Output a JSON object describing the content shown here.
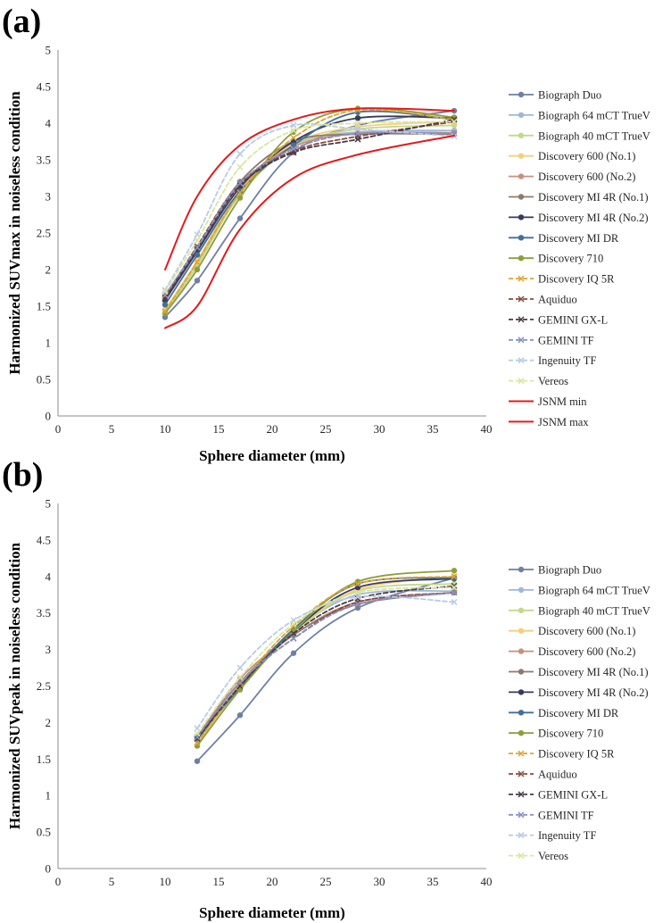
{
  "chart_data": [
    {
      "panel_label": "(a)",
      "type": "line",
      "xlabel": "Sphere diameter (mm)",
      "ylabel": "Harmonized SUVmax in noiseless condition",
      "xlim": [
        0,
        40
      ],
      "ylim": [
        0,
        5
      ],
      "xticks": [
        "0",
        "5",
        "10",
        "15",
        "20",
        "25",
        "30",
        "35",
        "40"
      ],
      "yticks": [
        "0",
        "0.5",
        "1",
        "1.5",
        "2",
        "2.5",
        "3",
        "3.5",
        "4",
        "4.5",
        "5"
      ],
      "grid": false,
      "legend_position": "right",
      "x": [
        10,
        13,
        17,
        22,
        28,
        37
      ],
      "series": [
        {
          "name": "Biograph Duo",
          "color": "#6e7fa6",
          "dash": false,
          "marker": "circle",
          "values": [
            1.35,
            1.85,
            2.7,
            3.6,
            3.97,
            4.17
          ]
        },
        {
          "name": "Biograph 64 mCT TrueV",
          "color": "#9db8d9",
          "dash": false,
          "marker": "circle",
          "values": [
            1.45,
            2.1,
            3.05,
            3.7,
            3.88,
            3.9
          ]
        },
        {
          "name": "Biograph 40 mCT TrueV",
          "color": "#c4d88a",
          "dash": false,
          "marker": "circle",
          "values": [
            1.42,
            2.05,
            3.02,
            3.68,
            3.92,
            3.97
          ]
        },
        {
          "name": "Discovery 600 (No.1)",
          "color": "#f5cf7a",
          "dash": false,
          "marker": "circle",
          "values": [
            1.45,
            2.12,
            3.08,
            3.72,
            3.95,
            4.02
          ]
        },
        {
          "name": "Discovery 600 (No.2)",
          "color": "#c9907d",
          "dash": false,
          "marker": "circle",
          "values": [
            1.6,
            2.28,
            3.15,
            3.68,
            3.86,
            3.87
          ]
        },
        {
          "name": "Discovery MI 4R (No.1)",
          "color": "#8c7a70",
          "dash": false,
          "marker": "circle",
          "values": [
            1.65,
            2.3,
            3.2,
            3.75,
            3.85,
            3.85
          ]
        },
        {
          "name": "Discovery MI 4R (No.2)",
          "color": "#383a5e",
          "dash": false,
          "marker": "circle",
          "values": [
            1.58,
            2.25,
            3.12,
            3.75,
            4.07,
            4.07
          ]
        },
        {
          "name": "Discovery MI DR",
          "color": "#41709c",
          "dash": false,
          "marker": "circle",
          "values": [
            1.52,
            2.2,
            3.07,
            3.7,
            4.15,
            4.05
          ]
        },
        {
          "name": "Discovery 710",
          "color": "#8c9f3a",
          "dash": false,
          "marker": "circle",
          "values": [
            1.4,
            2.0,
            2.98,
            3.88,
            4.2,
            4.08
          ]
        },
        {
          "name": "Discovery IQ 5R",
          "color": "#e0a32f",
          "dash": true,
          "marker": "x",
          "values": [
            1.43,
            2.1,
            3.05,
            3.8,
            4.18,
            4.05
          ]
        },
        {
          "name": "Aquiduo",
          "color": "#8a4a3a",
          "dash": true,
          "marker": "x",
          "values": [
            1.62,
            2.32,
            3.18,
            3.62,
            3.82,
            4.02
          ]
        },
        {
          "name": "GEMINI GX-L",
          "color": "#4a3a48",
          "dash": true,
          "marker": "x",
          "values": [
            1.6,
            2.28,
            3.15,
            3.6,
            3.78,
            4.05
          ]
        },
        {
          "name": "GEMINI TF",
          "color": "#8a92c4",
          "dash": true,
          "marker": "x",
          "values": [
            1.65,
            2.3,
            3.18,
            3.65,
            3.86,
            3.86
          ]
        },
        {
          "name": "Ingenuity TF",
          "color": "#b8cbe6",
          "dash": true,
          "marker": "x",
          "values": [
            1.72,
            2.48,
            3.58,
            3.97,
            3.92,
            3.82
          ]
        },
        {
          "name": "Vereos",
          "color": "#d9e6a0",
          "dash": true,
          "marker": "x",
          "values": [
            1.7,
            2.4,
            3.4,
            3.9,
            4.0,
            4.02
          ]
        },
        {
          "name": "JSNM min",
          "color": "#e41a1c",
          "dash": false,
          "marker": "none",
          "values": [
            1.2,
            1.5,
            2.55,
            3.25,
            3.57,
            3.83
          ]
        },
        {
          "name": "JSNM max",
          "color": "#e41a1c",
          "dash": false,
          "marker": "none",
          "values": [
            2.0,
            3.0,
            3.7,
            4.05,
            4.2,
            4.17
          ]
        }
      ]
    },
    {
      "panel_label": "(b)",
      "type": "line",
      "xlabel": "Sphere diameter (mm)",
      "ylabel": "Harmonized SUVpeak in noiseless condition",
      "xlim": [
        0,
        40
      ],
      "ylim": [
        0,
        5
      ],
      "xticks": [
        "0",
        "5",
        "10",
        "15",
        "20",
        "25",
        "30",
        "35",
        "40"
      ],
      "yticks": [
        "0",
        "0.5",
        "1",
        "1.5",
        "2",
        "2.5",
        "3",
        "3.5",
        "4",
        "4.5",
        "5"
      ],
      "grid": false,
      "legend_position": "right",
      "x": [
        13,
        17,
        22,
        28,
        37
      ],
      "series": [
        {
          "name": "Biograph Duo",
          "color": "#6e7fa6",
          "dash": false,
          "marker": "circle",
          "values": [
            1.47,
            2.1,
            2.95,
            3.57,
            3.98
          ]
        },
        {
          "name": "Biograph 64 mCT TrueV",
          "color": "#9db8d9",
          "dash": false,
          "marker": "circle",
          "values": [
            1.8,
            2.55,
            3.25,
            3.75,
            3.8
          ]
        },
        {
          "name": "Biograph 40 mCT TrueV",
          "color": "#c4d88a",
          "dash": false,
          "marker": "circle",
          "values": [
            1.75,
            2.5,
            3.22,
            3.8,
            3.9
          ]
        },
        {
          "name": "Discovery 600 (No.1)",
          "color": "#f5cf7a",
          "dash": false,
          "marker": "circle",
          "values": [
            1.7,
            2.5,
            3.25,
            3.82,
            4.0
          ]
        },
        {
          "name": "Discovery 600 (No.2)",
          "color": "#c9907d",
          "dash": false,
          "marker": "circle",
          "values": [
            1.8,
            2.6,
            3.2,
            3.65,
            3.78
          ]
        },
        {
          "name": "Discovery MI 4R (No.1)",
          "color": "#8c7a70",
          "dash": false,
          "marker": "circle",
          "values": [
            1.8,
            2.55,
            3.2,
            3.62,
            3.78
          ]
        },
        {
          "name": "Discovery MI 4R (No.2)",
          "color": "#383a5e",
          "dash": false,
          "marker": "circle",
          "values": [
            1.78,
            2.5,
            3.25,
            3.85,
            3.97
          ]
        },
        {
          "name": "Discovery MI DR",
          "color": "#41709c",
          "dash": false,
          "marker": "circle",
          "values": [
            1.77,
            2.48,
            3.28,
            3.9,
            3.98
          ]
        },
        {
          "name": "Discovery 710",
          "color": "#8c9f3a",
          "dash": false,
          "marker": "circle",
          "values": [
            1.68,
            2.45,
            3.25,
            3.93,
            4.08
          ]
        },
        {
          "name": "Discovery IQ 5R",
          "color": "#e0a32f",
          "dash": true,
          "marker": "x",
          "values": [
            1.72,
            2.52,
            3.32,
            3.9,
            4.0
          ]
        },
        {
          "name": "Aquiduo",
          "color": "#8a4a3a",
          "dash": true,
          "marker": "x",
          "values": [
            1.8,
            2.55,
            3.15,
            3.65,
            3.78
          ]
        },
        {
          "name": "GEMINI GX-L",
          "color": "#4a3a48",
          "dash": true,
          "marker": "x",
          "values": [
            1.78,
            2.5,
            3.22,
            3.7,
            3.87
          ]
        },
        {
          "name": "GEMINI TF",
          "color": "#8a92c4",
          "dash": true,
          "marker": "x",
          "values": [
            1.8,
            2.55,
            3.15,
            3.62,
            3.78
          ]
        },
        {
          "name": "Ingenuity TF",
          "color": "#b8cbe6",
          "dash": true,
          "marker": "x",
          "values": [
            1.92,
            2.75,
            3.4,
            3.72,
            3.65
          ]
        },
        {
          "name": "Vereos",
          "color": "#d9e6a0",
          "dash": true,
          "marker": "x",
          "values": [
            1.85,
            2.62,
            3.35,
            3.78,
            3.85
          ]
        }
      ]
    }
  ]
}
